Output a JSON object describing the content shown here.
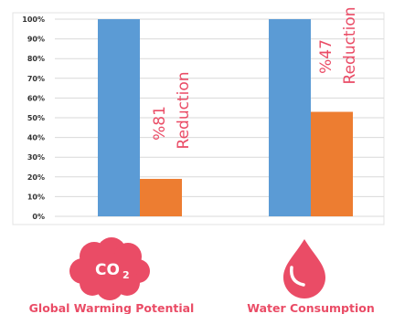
{
  "chart_data": {
    "type": "bar",
    "y_ticks": [
      "100%",
      "90%",
      "80%",
      "70%",
      "60%",
      "50%",
      "40%",
      "30%",
      "20%",
      "10%",
      "0%"
    ],
    "ylim": [
      0,
      100
    ],
    "grid": true,
    "groups": [
      {
        "label": "Global Warming Potential",
        "icon": "co2-cloud-icon",
        "icon_text_main": "CO",
        "icon_text_sub": "2",
        "annotation_value": "%81",
        "annotation_text": "Reduction",
        "bars": [
          {
            "value": 100,
            "color": "#5b9bd5"
          },
          {
            "value": 19,
            "color": "#ed7d31"
          }
        ]
      },
      {
        "label": "Water Consumption",
        "icon": "water-drop-icon",
        "annotation_value": "%47",
        "annotation_text": "Reduction",
        "bars": [
          {
            "value": 100,
            "color": "#5b9bd5"
          },
          {
            "value": 53,
            "color": "#ed7d31"
          }
        ]
      }
    ]
  },
  "colors": {
    "accent": "#ea4c66",
    "blue": "#5b9bd5",
    "orange": "#ed7d31",
    "grid": "#d9d9d9"
  }
}
